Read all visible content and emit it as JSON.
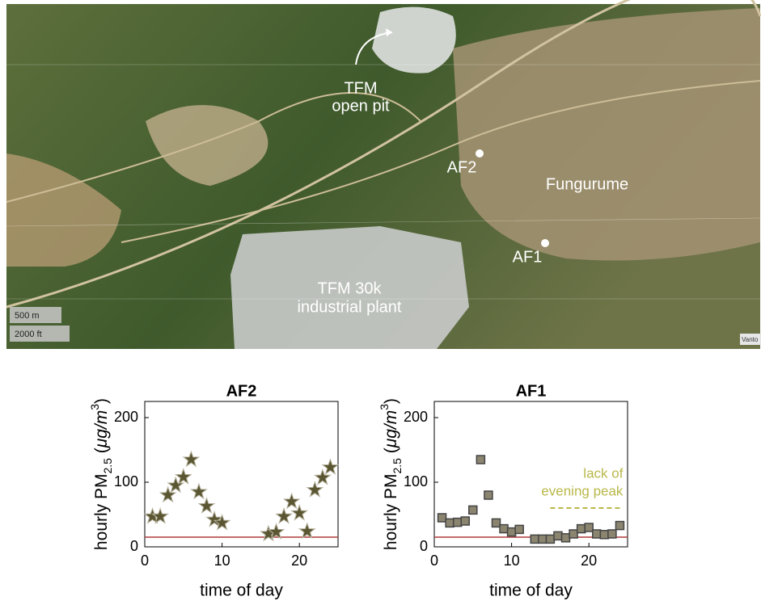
{
  "map": {
    "labels": [
      "TFM",
      "open pit",
      "AF2",
      "Fungurume",
      "AF1",
      "TFM 30k",
      "industrial plant"
    ],
    "scale": [
      "500 m",
      "2000 ft"
    ],
    "credit": "Vanto"
  },
  "chart_data": [
    {
      "type": "scatter",
      "title": "AF2",
      "x_label": "time of day",
      "y_label": [
        "hourly PM",
        "2.5",
        " (",
        "μg/m",
        "3",
        ")"
      ],
      "marker": "star",
      "color": "#5b5632",
      "x": [
        1,
        2,
        3,
        4,
        5,
        6,
        7,
        8,
        9,
        10,
        16,
        17,
        18,
        19,
        20,
        21,
        22,
        23,
        24
      ],
      "values": [
        47,
        47,
        80,
        95,
        108,
        135,
        85,
        63,
        42,
        37,
        20,
        23,
        47,
        70,
        52,
        24,
        88,
        107,
        123
      ],
      "xlim": [
        0,
        25
      ],
      "ylim": [
        0,
        225
      ],
      "xticks": [
        0,
        10,
        20
      ],
      "yticks": [
        0,
        100,
        200
      ],
      "hline": {
        "value": 15,
        "color": "#b03a3a"
      }
    },
    {
      "type": "scatter",
      "title": "AF1",
      "x_label": "time of day",
      "y_label": [
        "hourly PM",
        "2.5",
        " (",
        "μg/m",
        "3",
        ")"
      ],
      "marker": "square",
      "color": "#8b8570",
      "x": [
        1,
        2,
        3,
        4,
        5,
        6,
        7,
        8,
        9,
        10,
        11,
        13,
        14,
        15,
        16,
        17,
        18,
        19,
        20,
        21,
        22,
        23,
        24
      ],
      "values": [
        45,
        37,
        38,
        40,
        57,
        135,
        80,
        37,
        28,
        23,
        27,
        12,
        12,
        12,
        17,
        14,
        20,
        28,
        30,
        20,
        19,
        20,
        33
      ],
      "xlim": [
        0,
        25
      ],
      "ylim": [
        0,
        225
      ],
      "xticks": [
        0,
        10,
        20
      ],
      "yticks": [
        0,
        100,
        200
      ],
      "hline": {
        "value": 15,
        "color": "#b03a3a"
      },
      "annotation": {
        "text": [
          "lack of",
          "evening peak"
        ],
        "color": "#b9b84a",
        "x": [
          15,
          24
        ],
        "y": 60
      }
    }
  ]
}
